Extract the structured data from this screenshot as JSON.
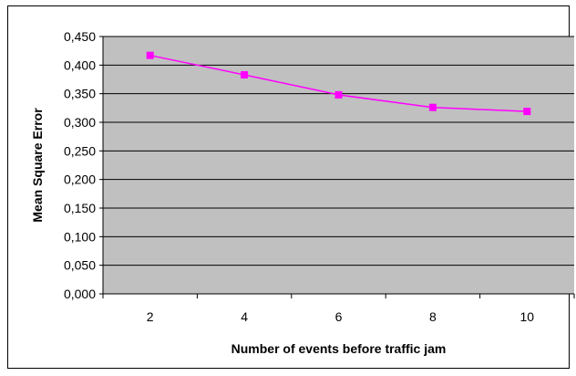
{
  "chart_data": {
    "type": "line",
    "title": "",
    "xlabel": "Number of events before traffic jam",
    "ylabel": "Mean Square Error",
    "categories": [
      "2",
      "4",
      "6",
      "8",
      "10"
    ],
    "series": [
      {
        "values": [
          0.417,
          0.383,
          0.348,
          0.326,
          0.319
        ]
      }
    ],
    "ylim": [
      0,
      0.45
    ],
    "yticks": [
      "0,000",
      "0,050",
      "0,100",
      "0,150",
      "0,200",
      "0,250",
      "0,300",
      "0,350",
      "0,400",
      "0,450"
    ],
    "grid": "horizontal",
    "legend": "none",
    "colors": {
      "plot_background": "#c0c0c0",
      "series": "#ff00ff",
      "gridline": "#000000"
    }
  }
}
